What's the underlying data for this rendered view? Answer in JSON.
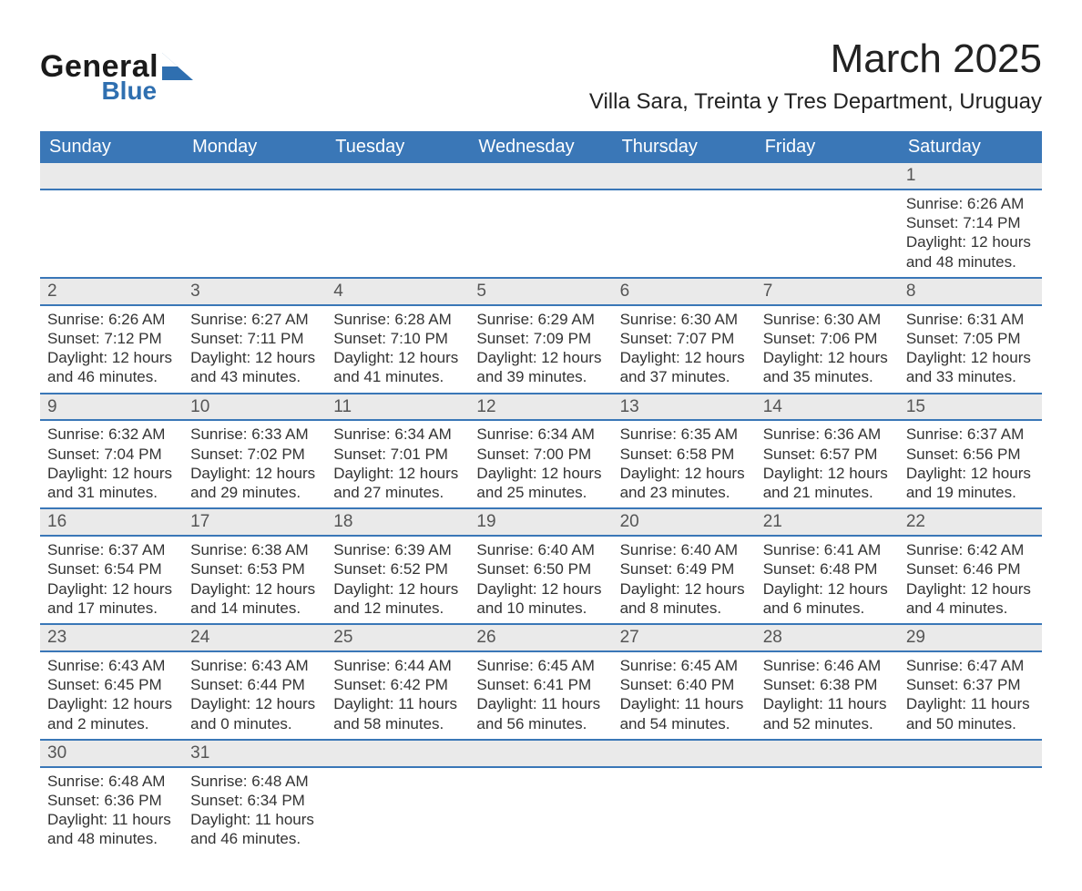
{
  "colors": {
    "page_bg": "#ffffff",
    "text": "#333333",
    "text_dark": "#222222",
    "header_blue": "#3a77b7",
    "header_text": "#ffffff",
    "row_border": "#3a77b7",
    "daynum_bg": "#eaeaea",
    "logo_dark": "#1a1a1a",
    "logo_blue": "#2f6fb0"
  },
  "typography": {
    "font_family": "Arial, Helvetica, sans-serif",
    "month_title_pt": 33,
    "location_pt": 18,
    "weekday_header_pt": 15,
    "body_pt": 13,
    "daynum_pt": 14
  },
  "logo": {
    "line1": "General",
    "line2": "Blue"
  },
  "title": "March 2025",
  "location": "Villa Sara, Treinta y Tres Department, Uruguay",
  "calendar": {
    "type": "table",
    "columns": [
      "Sunday",
      "Monday",
      "Tuesday",
      "Wednesday",
      "Thursday",
      "Friday",
      "Saturday"
    ],
    "start_weekday_index": 6,
    "days": [
      {
        "n": 1,
        "sunrise": "6:26 AM",
        "sunset": "7:14 PM",
        "daylight": "12 hours and 48 minutes."
      },
      {
        "n": 2,
        "sunrise": "6:26 AM",
        "sunset": "7:12 PM",
        "daylight": "12 hours and 46 minutes."
      },
      {
        "n": 3,
        "sunrise": "6:27 AM",
        "sunset": "7:11 PM",
        "daylight": "12 hours and 43 minutes."
      },
      {
        "n": 4,
        "sunrise": "6:28 AM",
        "sunset": "7:10 PM",
        "daylight": "12 hours and 41 minutes."
      },
      {
        "n": 5,
        "sunrise": "6:29 AM",
        "sunset": "7:09 PM",
        "daylight": "12 hours and 39 minutes."
      },
      {
        "n": 6,
        "sunrise": "6:30 AM",
        "sunset": "7:07 PM",
        "daylight": "12 hours and 37 minutes."
      },
      {
        "n": 7,
        "sunrise": "6:30 AM",
        "sunset": "7:06 PM",
        "daylight": "12 hours and 35 minutes."
      },
      {
        "n": 8,
        "sunrise": "6:31 AM",
        "sunset": "7:05 PM",
        "daylight": "12 hours and 33 minutes."
      },
      {
        "n": 9,
        "sunrise": "6:32 AM",
        "sunset": "7:04 PM",
        "daylight": "12 hours and 31 minutes."
      },
      {
        "n": 10,
        "sunrise": "6:33 AM",
        "sunset": "7:02 PM",
        "daylight": "12 hours and 29 minutes."
      },
      {
        "n": 11,
        "sunrise": "6:34 AM",
        "sunset": "7:01 PM",
        "daylight": "12 hours and 27 minutes."
      },
      {
        "n": 12,
        "sunrise": "6:34 AM",
        "sunset": "7:00 PM",
        "daylight": "12 hours and 25 minutes."
      },
      {
        "n": 13,
        "sunrise": "6:35 AM",
        "sunset": "6:58 PM",
        "daylight": "12 hours and 23 minutes."
      },
      {
        "n": 14,
        "sunrise": "6:36 AM",
        "sunset": "6:57 PM",
        "daylight": "12 hours and 21 minutes."
      },
      {
        "n": 15,
        "sunrise": "6:37 AM",
        "sunset": "6:56 PM",
        "daylight": "12 hours and 19 minutes."
      },
      {
        "n": 16,
        "sunrise": "6:37 AM",
        "sunset": "6:54 PM",
        "daylight": "12 hours and 17 minutes."
      },
      {
        "n": 17,
        "sunrise": "6:38 AM",
        "sunset": "6:53 PM",
        "daylight": "12 hours and 14 minutes."
      },
      {
        "n": 18,
        "sunrise": "6:39 AM",
        "sunset": "6:52 PM",
        "daylight": "12 hours and 12 minutes."
      },
      {
        "n": 19,
        "sunrise": "6:40 AM",
        "sunset": "6:50 PM",
        "daylight": "12 hours and 10 minutes."
      },
      {
        "n": 20,
        "sunrise": "6:40 AM",
        "sunset": "6:49 PM",
        "daylight": "12 hours and 8 minutes."
      },
      {
        "n": 21,
        "sunrise": "6:41 AM",
        "sunset": "6:48 PM",
        "daylight": "12 hours and 6 minutes."
      },
      {
        "n": 22,
        "sunrise": "6:42 AM",
        "sunset": "6:46 PM",
        "daylight": "12 hours and 4 minutes."
      },
      {
        "n": 23,
        "sunrise": "6:43 AM",
        "sunset": "6:45 PM",
        "daylight": "12 hours and 2 minutes."
      },
      {
        "n": 24,
        "sunrise": "6:43 AM",
        "sunset": "6:44 PM",
        "daylight": "12 hours and 0 minutes."
      },
      {
        "n": 25,
        "sunrise": "6:44 AM",
        "sunset": "6:42 PM",
        "daylight": "11 hours and 58 minutes."
      },
      {
        "n": 26,
        "sunrise": "6:45 AM",
        "sunset": "6:41 PM",
        "daylight": "11 hours and 56 minutes."
      },
      {
        "n": 27,
        "sunrise": "6:45 AM",
        "sunset": "6:40 PM",
        "daylight": "11 hours and 54 minutes."
      },
      {
        "n": 28,
        "sunrise": "6:46 AM",
        "sunset": "6:38 PM",
        "daylight": "11 hours and 52 minutes."
      },
      {
        "n": 29,
        "sunrise": "6:47 AM",
        "sunset": "6:37 PM",
        "daylight": "11 hours and 50 minutes."
      },
      {
        "n": 30,
        "sunrise": "6:48 AM",
        "sunset": "6:36 PM",
        "daylight": "11 hours and 48 minutes."
      },
      {
        "n": 31,
        "sunrise": "6:48 AM",
        "sunset": "6:34 PM",
        "daylight": "11 hours and 46 minutes."
      }
    ],
    "labels": {
      "sunrise_prefix": "Sunrise: ",
      "sunset_prefix": "Sunset: ",
      "daylight_prefix": "Daylight: "
    }
  }
}
